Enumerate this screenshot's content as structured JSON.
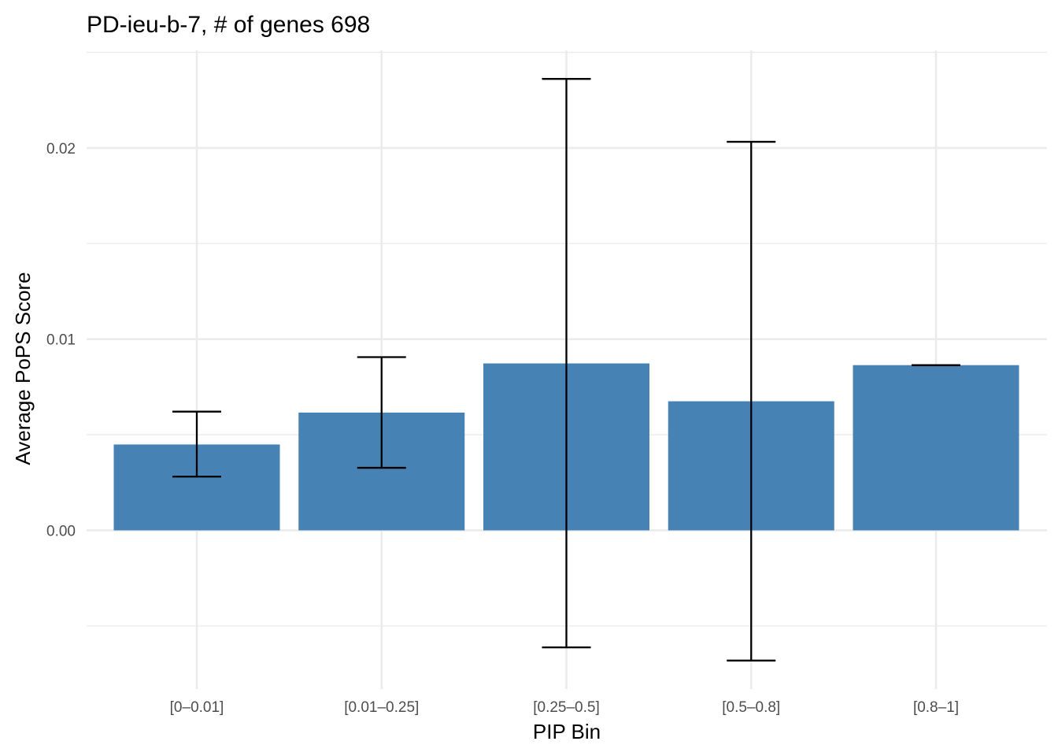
{
  "chart_data": {
    "type": "bar",
    "title": "PD-ieu-b-7, # of genes 698",
    "xlabel": "PIP Bin",
    "ylabel": "Average PoPS Score",
    "categories": [
      "[0–0.01]",
      "[0.01–0.25]",
      "[0.25–0.5]",
      "[0.5–0.8]",
      "[0.8–1]"
    ],
    "values": [
      0.00449,
      0.00616,
      0.00873,
      0.00675,
      0.00864
    ],
    "error_lower": [
      0.00281,
      0.00327,
      -0.00612,
      -0.00681,
      0.00864
    ],
    "error_upper": [
      0.00621,
      0.00906,
      0.02361,
      0.02032,
      0.00864
    ],
    "ylim": [
      -0.0083,
      0.0251
    ],
    "yticks": [
      0.0,
      0.01,
      0.02
    ],
    "ytick_labels": [
      "0.00",
      "0.01",
      "0.02"
    ],
    "grid": true,
    "colors": {
      "bar": "#4682b4",
      "errorbar": "#000000",
      "grid": "#ebebeb"
    }
  }
}
